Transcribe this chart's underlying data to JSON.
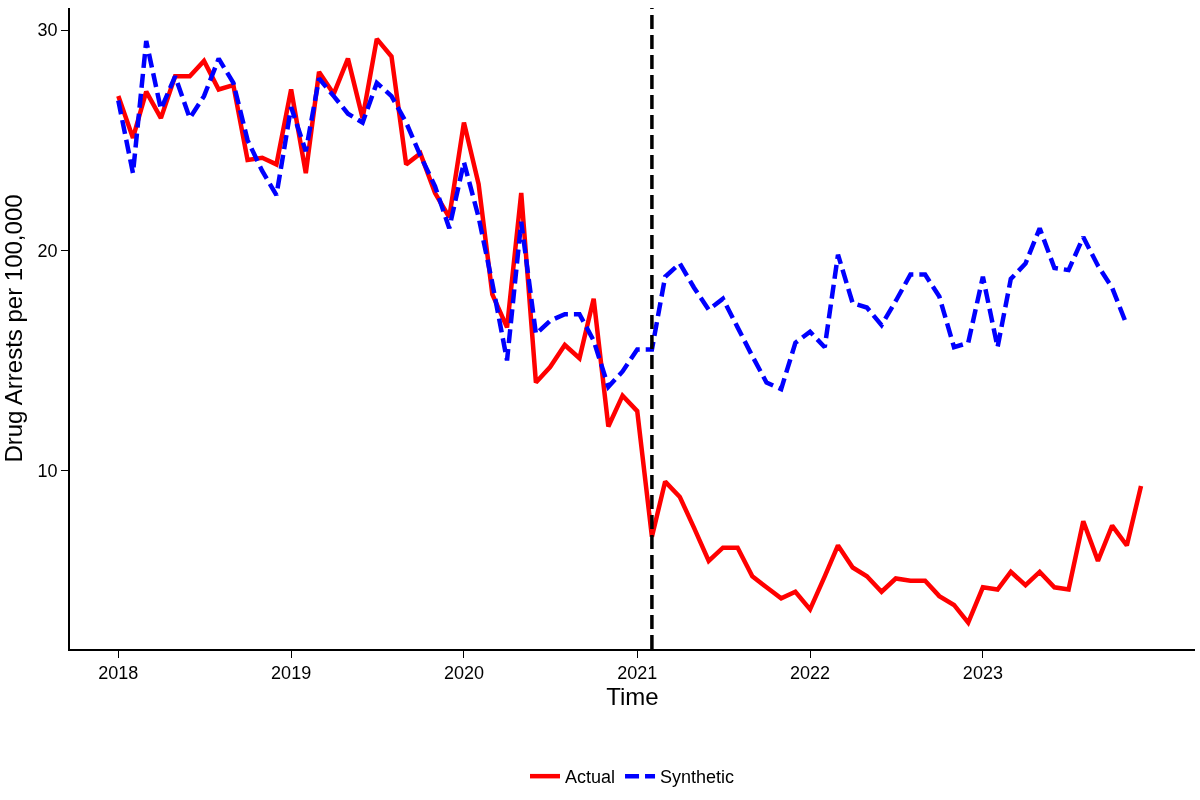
{
  "chart_data": {
    "type": "line",
    "xlabel": "Time",
    "ylabel": "Drug Arrests per 100,000",
    "x": [
      "2018-01",
      "2018-02",
      "2018-03",
      "2018-04",
      "2018-05",
      "2018-06",
      "2018-07",
      "2018-08",
      "2018-09",
      "2018-10",
      "2018-11",
      "2018-12",
      "2019-01",
      "2019-02",
      "2019-03",
      "2019-04",
      "2019-05",
      "2019-06",
      "2019-07",
      "2019-08",
      "2019-09",
      "2019-10",
      "2019-11",
      "2019-12",
      "2020-01",
      "2020-02",
      "2020-03",
      "2020-04",
      "2020-05",
      "2020-06",
      "2020-07",
      "2020-08",
      "2020-09",
      "2020-10",
      "2020-11",
      "2020-12",
      "2021-01",
      "2021-02",
      "2021-03",
      "2021-04",
      "2021-05",
      "2021-06",
      "2021-07",
      "2021-08",
      "2021-09",
      "2021-10",
      "2021-11",
      "2021-12",
      "2022-01",
      "2022-02",
      "2022-03",
      "2022-04",
      "2022-05",
      "2022-06",
      "2022-07",
      "2022-08",
      "2022-09",
      "2022-10",
      "2022-11",
      "2022-12",
      "2023-01",
      "2023-02",
      "2023-03",
      "2023-04",
      "2023-05",
      "2023-06",
      "2023-07",
      "2023-08",
      "2023-09",
      "2023-10",
      "2023-11",
      "2023-12"
    ],
    "series": [
      {
        "name": "Actual",
        "color": "#ff0000",
        "line_style": "solid",
        "values": [
          27.0,
          25.1,
          27.2,
          26.0,
          27.9,
          27.9,
          28.6,
          27.3,
          27.5,
          24.1,
          24.2,
          23.9,
          27.3,
          23.5,
          28.1,
          27.1,
          28.7,
          26.0,
          29.6,
          28.8,
          23.9,
          24.4,
          22.6,
          21.5,
          25.8,
          23.0,
          18.0,
          16.5,
          22.6,
          14.0,
          14.7,
          15.7,
          15.1,
          17.8,
          12.0,
          13.4,
          12.7,
          7.0,
          9.5,
          8.8,
          7.4,
          5.9,
          6.5,
          6.5,
          5.2,
          4.7,
          4.2,
          4.5,
          3.7,
          5.2,
          6.6,
          5.6,
          5.2,
          4.5,
          5.1,
          5.0,
          5.0,
          4.3,
          3.9,
          3.1,
          4.7,
          4.6,
          5.4,
          4.8,
          5.4,
          4.7,
          4.6,
          7.7,
          5.9,
          7.5,
          6.6,
          9.3
        ]
      },
      {
        "name": "Synthetic",
        "color": "#0000ff",
        "line_style": "dashed",
        "values": [
          26.8,
          23.5,
          29.5,
          26.4,
          27.9,
          26.0,
          27.0,
          28.7,
          27.6,
          25.0,
          23.6,
          22.5,
          26.5,
          24.5,
          27.8,
          27.0,
          26.2,
          25.8,
          27.6,
          27.0,
          25.8,
          24.3,
          22.9,
          21.0,
          24.0,
          21.5,
          18.5,
          15.0,
          21.3,
          16.2,
          16.8,
          17.1,
          17.1,
          15.9,
          13.8,
          14.5,
          15.5,
          15.5,
          18.8,
          19.4,
          18.3,
          17.3,
          17.8,
          16.5,
          15.2,
          14.0,
          13.7,
          15.8,
          16.3,
          15.6,
          19.8,
          17.6,
          17.4,
          16.6,
          17.7,
          18.9,
          18.9,
          17.9,
          15.6,
          15.8,
          18.8,
          15.6,
          18.7,
          19.4,
          21.0,
          19.2,
          19.1,
          20.6,
          19.3,
          18.3,
          16.6,
          null
        ]
      }
    ],
    "ref_lines": [
      {
        "axis": "x",
        "value": "2021-02",
        "color": "#000000",
        "line_style": "dashed"
      }
    ],
    "xlim": [
      "2017-09-21",
      "2024-03-24"
    ],
    "xticks": [
      {
        "value": "2018-01",
        "label": "2018"
      },
      {
        "value": "2019-01",
        "label": "2019"
      },
      {
        "value": "2020-01",
        "label": "2020"
      },
      {
        "value": "2021-01",
        "label": "2021"
      },
      {
        "value": "2022-01",
        "label": "2022"
      },
      {
        "value": "2023-01",
        "label": "2023"
      }
    ],
    "ylim": [
      1.9,
      31
    ],
    "yticks": [
      10,
      20,
      30
    ],
    "grid": false,
    "legend": "bottom"
  }
}
